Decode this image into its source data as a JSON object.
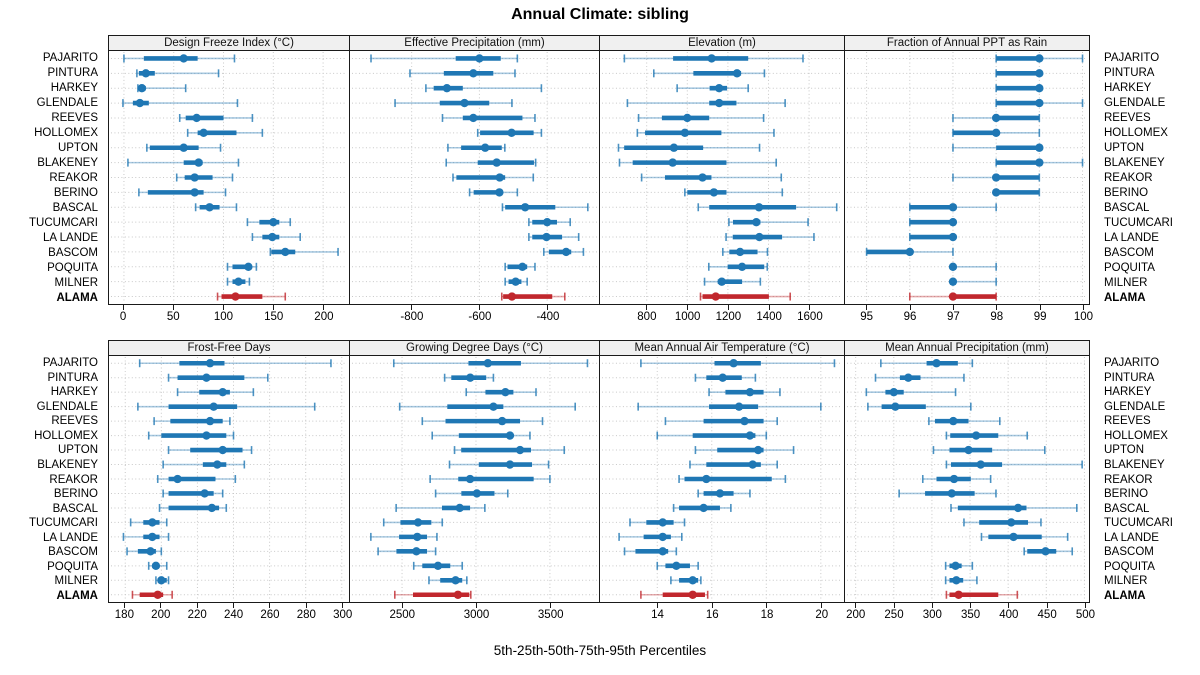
{
  "title": "Annual Climate: sibling",
  "footer": "5th-25th-50th-75th-95th Percentiles",
  "colors": {
    "series": "#1f77b4",
    "highlight": "#c1272d",
    "grid": "#c8c8c8",
    "strip_bg": "#f0f0f0",
    "panel_border": "#1a1a1a",
    "text": "#000000"
  },
  "chart_data": {
    "type": "dotplot-percentile-intervals",
    "title": "Annual Climate: sibling",
    "caption": "5th-25th-50th-75th-95th Percentiles",
    "percentiles": [
      5,
      25,
      50,
      75,
      95
    ],
    "highlight_station": "ALAMA",
    "stations": [
      "PAJARITO",
      "PINTURA",
      "HARKEY",
      "GLENDALE",
      "REEVES",
      "HOLLOMEX",
      "UPTON",
      "BLAKENEY",
      "REAKOR",
      "BERINO",
      "BASCAL",
      "TUCUMCARI",
      "LA LANDE",
      "BASCOM",
      "POQUITA",
      "MILNER",
      "ALAMA"
    ],
    "panels": [
      {
        "title": "Design Freeze Index (°C)",
        "grid_row": "top",
        "domain": [
          -15,
          226
        ],
        "ticks": [
          0,
          50,
          100,
          150,
          200
        ],
        "values": [
          [
            0,
            20,
            60,
            74,
            111
          ],
          [
            13,
            15,
            22,
            31,
            95
          ],
          [
            14,
            15,
            18,
            22,
            62
          ],
          [
            -1,
            9,
            16,
            25,
            114
          ],
          [
            56,
            62,
            73,
            100,
            129
          ],
          [
            64,
            74,
            80,
            113,
            139
          ],
          [
            23,
            26,
            60,
            75,
            97
          ],
          [
            4,
            60,
            75,
            79,
            115
          ],
          [
            53,
            61,
            71,
            89,
            109
          ],
          [
            15,
            24,
            71,
            80,
            102
          ],
          [
            72,
            76,
            86,
            96,
            113
          ],
          [
            124,
            136,
            150,
            156,
            167
          ],
          [
            129,
            139,
            149,
            156,
            177
          ],
          [
            147,
            148,
            162,
            172,
            215
          ],
          [
            104,
            109,
            125,
            127,
            133
          ],
          [
            104,
            109,
            115,
            122,
            126
          ],
          [
            94,
            98,
            112,
            139,
            162
          ]
        ]
      },
      {
        "title": "Effective Precipitation (mm)",
        "grid_row": "top",
        "domain": [
          -982,
          -247
        ],
        "ticks": [
          -800,
          -600,
          -400
        ],
        "values": [
          [
            -920,
            -670,
            -600,
            -537,
            -488
          ],
          [
            -805,
            -705,
            -618,
            -559,
            -495
          ],
          [
            -758,
            -735,
            -696,
            -649,
            -417
          ],
          [
            -849,
            -717,
            -644,
            -571,
            -504
          ],
          [
            -709,
            -649,
            -618,
            -473,
            -436
          ],
          [
            -605,
            -598,
            -505,
            -440,
            -417
          ],
          [
            -693,
            -654,
            -583,
            -534,
            -525
          ],
          [
            -698,
            -605,
            -549,
            -439,
            -434
          ],
          [
            -678,
            -668,
            -540,
            -524,
            -441
          ],
          [
            -629,
            -617,
            -541,
            -532,
            -488
          ],
          [
            -532,
            -524,
            -465,
            -376,
            -280
          ],
          [
            -454,
            -444,
            -400,
            -371,
            -332
          ],
          [
            -454,
            -444,
            -402,
            -356,
            -307
          ],
          [
            -410,
            -395,
            -344,
            -329,
            -293
          ],
          [
            -524,
            -517,
            -473,
            -459,
            -436
          ],
          [
            -524,
            -514,
            -493,
            -476,
            -459
          ],
          [
            -534,
            -530,
            -504,
            -385,
            -348
          ]
        ]
      },
      {
        "title": "Elevation (m)",
        "grid_row": "top",
        "domain": [
          570,
          1772
        ],
        "ticks": [
          800,
          1000,
          1200,
          1400,
          1600
        ],
        "values": [
          [
            690,
            930,
            1120,
            1300,
            1570
          ],
          [
            835,
            1030,
            1245,
            1265,
            1380
          ],
          [
            950,
            1110,
            1157,
            1196,
            1300
          ],
          [
            705,
            1108,
            1157,
            1242,
            1482
          ],
          [
            760,
            875,
            1000,
            1108,
            1376
          ],
          [
            754,
            792,
            988,
            1168,
            1427
          ],
          [
            661,
            689,
            934,
            1078,
            1356
          ],
          [
            666,
            731,
            928,
            1193,
            1438
          ],
          [
            775,
            890,
            1075,
            1119,
            1463
          ],
          [
            988,
            1000,
            1131,
            1193,
            1468
          ],
          [
            1054,
            1108,
            1353,
            1536,
            1736
          ],
          [
            1205,
            1225,
            1340,
            1360,
            1595
          ],
          [
            1191,
            1224,
            1355,
            1467,
            1624
          ],
          [
            1175,
            1207,
            1260,
            1346,
            1395
          ],
          [
            1106,
            1199,
            1270,
            1379,
            1394
          ],
          [
            1085,
            1150,
            1170,
            1270,
            1360
          ],
          [
            1065,
            1075,
            1140,
            1402,
            1507
          ]
        ]
      },
      {
        "title": "Fraction of Annual PPT as Rain",
        "grid_row": "top",
        "domain": [
          94.5,
          100.15
        ],
        "ticks": [
          95,
          96,
          97,
          98,
          99,
          100
        ],
        "values": [
          [
            98,
            98,
            99,
            99,
            100
          ],
          [
            98,
            98,
            99,
            99,
            99
          ],
          [
            98,
            98,
            99,
            99,
            99
          ],
          [
            98,
            98,
            99,
            99,
            100
          ],
          [
            97,
            98,
            98,
            99,
            99
          ],
          [
            97,
            97,
            98,
            98,
            99
          ],
          [
            97,
            98,
            99,
            99,
            99
          ],
          [
            98,
            98,
            99,
            99,
            100
          ],
          [
            97,
            98,
            98,
            99,
            99
          ],
          [
            98,
            98,
            98,
            99,
            99
          ],
          [
            96,
            96,
            97,
            97,
            98
          ],
          [
            96,
            96,
            97,
            97,
            97
          ],
          [
            96,
            96,
            97,
            97,
            97
          ],
          [
            95,
            95,
            96,
            96,
            97
          ],
          [
            97,
            97,
            97,
            97,
            98
          ],
          [
            97,
            97,
            97,
            97,
            98
          ],
          [
            96,
            97,
            97,
            98,
            98
          ]
        ]
      },
      {
        "title": "Frost-Free Days",
        "grid_row": "bottom",
        "domain": [
          171,
          304
        ],
        "ticks": [
          180,
          200,
          220,
          240,
          260,
          280,
          300
        ],
        "values": [
          [
            188,
            210,
            227,
            235,
            294
          ],
          [
            204,
            209,
            225,
            246,
            259
          ],
          [
            209,
            221,
            234,
            238,
            251
          ],
          [
            187,
            204,
            229,
            242,
            285
          ],
          [
            196,
            205,
            227,
            234,
            238
          ],
          [
            193,
            200,
            225,
            236,
            240
          ],
          [
            204,
            216,
            234,
            245,
            250
          ],
          [
            201,
            223,
            231,
            236,
            246
          ],
          [
            198,
            204,
            209,
            230,
            241
          ],
          [
            201,
            204,
            224,
            229,
            234
          ],
          [
            199,
            204,
            228,
            232,
            236
          ],
          [
            183,
            190,
            195,
            199,
            203
          ],
          [
            179,
            190,
            195,
            199,
            204
          ],
          [
            181,
            187,
            194,
            197,
            200
          ],
          [
            193,
            195,
            197,
            199,
            203
          ],
          [
            197,
            198,
            200,
            203,
            204
          ],
          [
            184,
            188,
            198,
            201,
            206
          ]
        ]
      },
      {
        "title": "Growing Degree Days (°C)",
        "grid_row": "bottom",
        "domain": [
          2148,
          3832
        ],
        "ticks": [
          2500,
          3000,
          3500
        ],
        "values": [
          [
            2444,
            2949,
            3080,
            3304,
            3754
          ],
          [
            2788,
            2833,
            2961,
            3069,
            3118
          ],
          [
            2934,
            3064,
            3199,
            3253,
            3406
          ],
          [
            2484,
            2806,
            3118,
            3185,
            3671
          ],
          [
            2637,
            2794,
            3177,
            3298,
            3450
          ],
          [
            2704,
            2884,
            3230,
            3250,
            3365
          ],
          [
            2855,
            2900,
            3298,
            3372,
            3597
          ],
          [
            2821,
            3019,
            3230,
            3379,
            3491
          ],
          [
            2690,
            2880,
            2960,
            3390,
            3500
          ],
          [
            2727,
            2901,
            3006,
            3125,
            3215
          ],
          [
            2460,
            2770,
            2890,
            2960,
            3060
          ],
          [
            2376,
            2489,
            2608,
            2698,
            2772
          ],
          [
            2289,
            2480,
            2603,
            2669,
            2736
          ],
          [
            2338,
            2462,
            2597,
            2669,
            2727
          ],
          [
            2579,
            2637,
            2743,
            2826,
            2907
          ],
          [
            2682,
            2758,
            2862,
            2907,
            2938
          ],
          [
            2451,
            2574,
            2878,
            2955,
            2965
          ]
        ]
      },
      {
        "title": "Mean Annual Air Temperature (°C)",
        "grid_row": "bottom",
        "domain": [
          11.9,
          20.85
        ],
        "ticks": [
          14,
          16,
          18,
          20
        ],
        "values": [
          [
            13.4,
            16.1,
            16.8,
            17.8,
            20.5
          ],
          [
            15.4,
            15.8,
            16.4,
            17.1,
            17.6
          ],
          [
            15.9,
            16.5,
            17.4,
            17.9,
            18.5
          ],
          [
            13.3,
            15.9,
            17.0,
            17.7,
            20.0
          ],
          [
            14.3,
            15.7,
            17.2,
            17.9,
            18.4
          ],
          [
            14.0,
            15.3,
            17.4,
            17.6,
            18.0
          ],
          [
            15.4,
            16.2,
            17.7,
            17.9,
            19.0
          ],
          [
            15.2,
            15.8,
            17.5,
            17.8,
            18.4
          ],
          [
            14.8,
            15.0,
            15.8,
            18.2,
            18.7
          ],
          [
            15.5,
            15.7,
            16.3,
            16.8,
            17.4
          ],
          [
            14.6,
            14.8,
            15.7,
            16.3,
            16.7
          ],
          [
            13.0,
            13.6,
            14.2,
            14.6,
            15.0
          ],
          [
            12.6,
            13.5,
            14.2,
            14.5,
            14.9
          ],
          [
            12.8,
            13.2,
            14.2,
            14.4,
            14.7
          ],
          [
            14.0,
            14.3,
            14.7,
            15.2,
            15.5
          ],
          [
            14.5,
            14.8,
            15.3,
            15.5,
            15.6
          ],
          [
            13.4,
            14.2,
            15.3,
            15.75,
            15.85
          ]
        ]
      },
      {
        "title": "Mean Annual Precipitation (mm)",
        "grid_row": "bottom",
        "domain": [
          186,
          506
        ],
        "ticks": [
          200,
          250,
          300,
          350,
          400,
          450,
          500
        ],
        "values": [
          [
            233,
            293,
            306,
            334,
            353
          ],
          [
            226,
            258,
            269,
            285,
            342
          ],
          [
            214,
            239,
            250,
            263,
            331
          ],
          [
            216,
            234,
            252,
            292,
            351
          ],
          [
            296,
            304,
            328,
            348,
            389
          ],
          [
            319,
            324,
            358,
            387,
            425
          ],
          [
            302,
            323,
            348,
            379,
            448
          ],
          [
            319,
            325,
            364,
            392,
            497
          ],
          [
            288,
            306,
            329,
            351,
            377
          ],
          [
            257,
            291,
            326,
            356,
            384
          ],
          [
            325,
            334,
            413,
            424,
            490
          ],
          [
            342,
            362,
            404,
            426,
            443
          ],
          [
            365,
            374,
            407,
            444,
            478
          ],
          [
            421,
            425,
            449,
            463,
            484
          ],
          [
            318,
            323,
            331,
            339,
            353
          ],
          [
            318,
            323,
            332,
            341,
            359
          ],
          [
            319,
            323,
            335,
            387,
            412
          ]
        ]
      }
    ]
  }
}
